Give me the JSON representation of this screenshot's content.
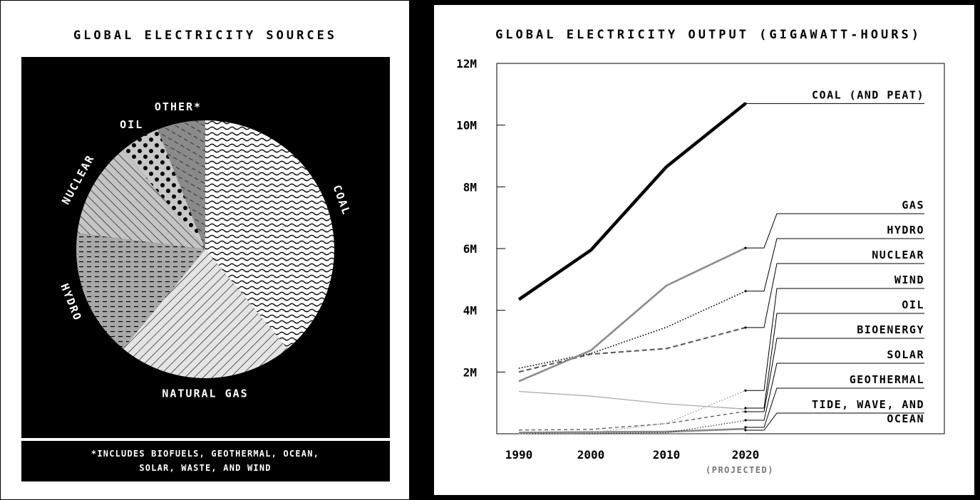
{
  "left_panel": {
    "title": "GLOBAL ELECTRICITY SOURCES",
    "footnote_line1": "*INCLUDES BIOFUELS, GEOTHERMAL, OCEAN,",
    "footnote_line2": "SOLAR, WASTE, AND WIND"
  },
  "right_panel": {
    "title": "GLOBAL ELECTRICITY OUTPUT (GIGAWATT-HOURS)",
    "projected_note": "(PROJECTED)"
  },
  "chart_data": [
    {
      "type": "pie",
      "title": "GLOBAL ELECTRICITY SOURCES",
      "slices": [
        {
          "label": "COAL",
          "value": 39,
          "pattern": "waves"
        },
        {
          "label": "NATURAL GAS",
          "value": 22,
          "pattern": "diagonal-light"
        },
        {
          "label": "HYDRO",
          "value": 16,
          "pattern": "dashes"
        },
        {
          "label": "NUCLEAR",
          "value": 12,
          "pattern": "diagonal-gray"
        },
        {
          "label": "OIL",
          "value": 5,
          "pattern": "dots"
        },
        {
          "label": "OTHER*",
          "value": 6,
          "pattern": "dashed-dark"
        }
      ],
      "footnote": "*INCLUDES BIOFUELS, GEOTHERMAL, OCEAN, SOLAR, WASTE, AND WIND"
    },
    {
      "type": "line",
      "title": "GLOBAL ELECTRICITY OUTPUT (GIGAWATT-HOURS)",
      "x": [
        1990,
        2000,
        2010,
        2020
      ],
      "x_tick_labels": [
        "1990",
        "2000",
        "2010",
        "2020"
      ],
      "x_note": "(PROJECTED)",
      "ylim": [
        0,
        12000000
      ],
      "y_ticks": [
        2000000,
        4000000,
        6000000,
        8000000,
        10000000,
        12000000
      ],
      "y_tick_labels": [
        "2M",
        "4M",
        "6M",
        "8M",
        "10M",
        "12M"
      ],
      "series": [
        {
          "name": "COAL (AND PEAT)",
          "values": [
            4350000,
            5950000,
            8650000,
            10700000
          ],
          "color": "#000000",
          "style": "solid-thick"
        },
        {
          "name": "GAS",
          "values": [
            1700000,
            2700000,
            4800000,
            6020000
          ],
          "color": "#8c8c8c",
          "style": "solid"
        },
        {
          "name": "HYDRO",
          "values": [
            2120000,
            2600000,
            3450000,
            4620000
          ],
          "color": "#000000",
          "style": "dotted"
        },
        {
          "name": "NUCLEAR",
          "values": [
            2000000,
            2580000,
            2760000,
            3440000
          ],
          "color": "#555555",
          "style": "dashed"
        },
        {
          "name": "WIND",
          "values": [
            4000,
            30000,
            340000,
            1400000
          ],
          "color": "#aaaaaa",
          "style": "dotted"
        },
        {
          "name": "OIL",
          "values": [
            1370000,
            1220000,
            970000,
            800000
          ],
          "color": "#aaaaaa",
          "style": "solid-thin"
        },
        {
          "name": "BIOENERGY",
          "values": [
            120000,
            140000,
            330000,
            730000
          ],
          "color": "#555555",
          "style": "dashed-thin"
        },
        {
          "name": "SOLAR",
          "values": [
            1000,
            2000,
            32000,
            430000
          ],
          "color": "#000000",
          "style": "dotted-thin"
        },
        {
          "name": "GEOTHERMAL",
          "values": [
            36000,
            52000,
            68000,
            160000
          ],
          "color": "#888888",
          "style": "solid"
        },
        {
          "name": "TIDE, WAVE, AND OCEAN",
          "values": [
            600,
            550,
            520,
            2000
          ],
          "color": "#555555",
          "style": "solid-thin"
        }
      ]
    }
  ]
}
